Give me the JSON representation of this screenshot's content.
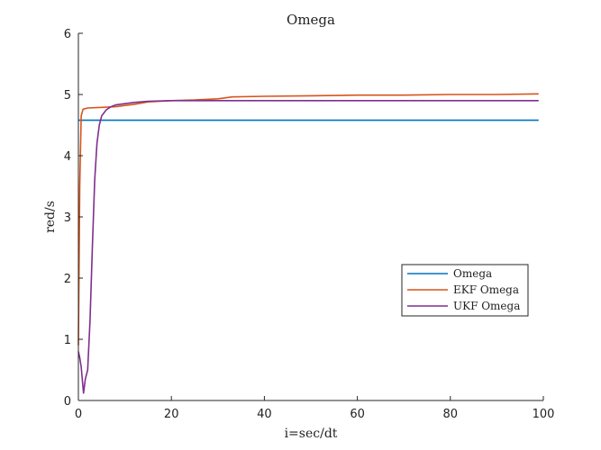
{
  "chart_data": {
    "type": "line",
    "title": "Omega",
    "xlabel": "i=sec/dt",
    "ylabel": "red/s",
    "xlim": [
      0,
      100
    ],
    "ylim": [
      0,
      6
    ],
    "xticks": [
      0,
      20,
      40,
      60,
      80,
      100
    ],
    "yticks": [
      0,
      1,
      2,
      3,
      4,
      5,
      6
    ],
    "grid": false,
    "legend_position": "right",
    "series": [
      {
        "name": "Omega",
        "color": "#0072BD",
        "x": [
          0,
          99
        ],
        "y": [
          4.58,
          4.58
        ]
      },
      {
        "name": "EKF Omega",
        "color": "#D95319",
        "x": [
          0,
          0.3,
          0.6,
          1,
          2,
          5,
          8,
          10,
          12,
          15,
          20,
          25,
          30,
          33,
          40,
          50,
          60,
          70,
          80,
          90,
          99
        ],
        "y": [
          0.9,
          3.5,
          4.65,
          4.76,
          4.78,
          4.79,
          4.8,
          4.82,
          4.84,
          4.88,
          4.9,
          4.91,
          4.93,
          4.96,
          4.97,
          4.98,
          4.99,
          4.99,
          5.0,
          5.0,
          5.01
        ]
      },
      {
        "name": "UKF Omega",
        "color": "#7E2F8E",
        "x": [
          0,
          0.3,
          0.6,
          0.9,
          1.1,
          1.5,
          2,
          2.5,
          3,
          3.5,
          4,
          4.5,
          5,
          6,
          7,
          8,
          10,
          12,
          15,
          20,
          30,
          50,
          70,
          99
        ],
        "y": [
          0.8,
          0.7,
          0.55,
          0.3,
          0.12,
          0.35,
          0.5,
          1.3,
          2.5,
          3.6,
          4.2,
          4.5,
          4.65,
          4.75,
          4.8,
          4.83,
          4.85,
          4.87,
          4.89,
          4.9,
          4.9,
          4.9,
          4.9,
          4.9
        ]
      }
    ]
  }
}
